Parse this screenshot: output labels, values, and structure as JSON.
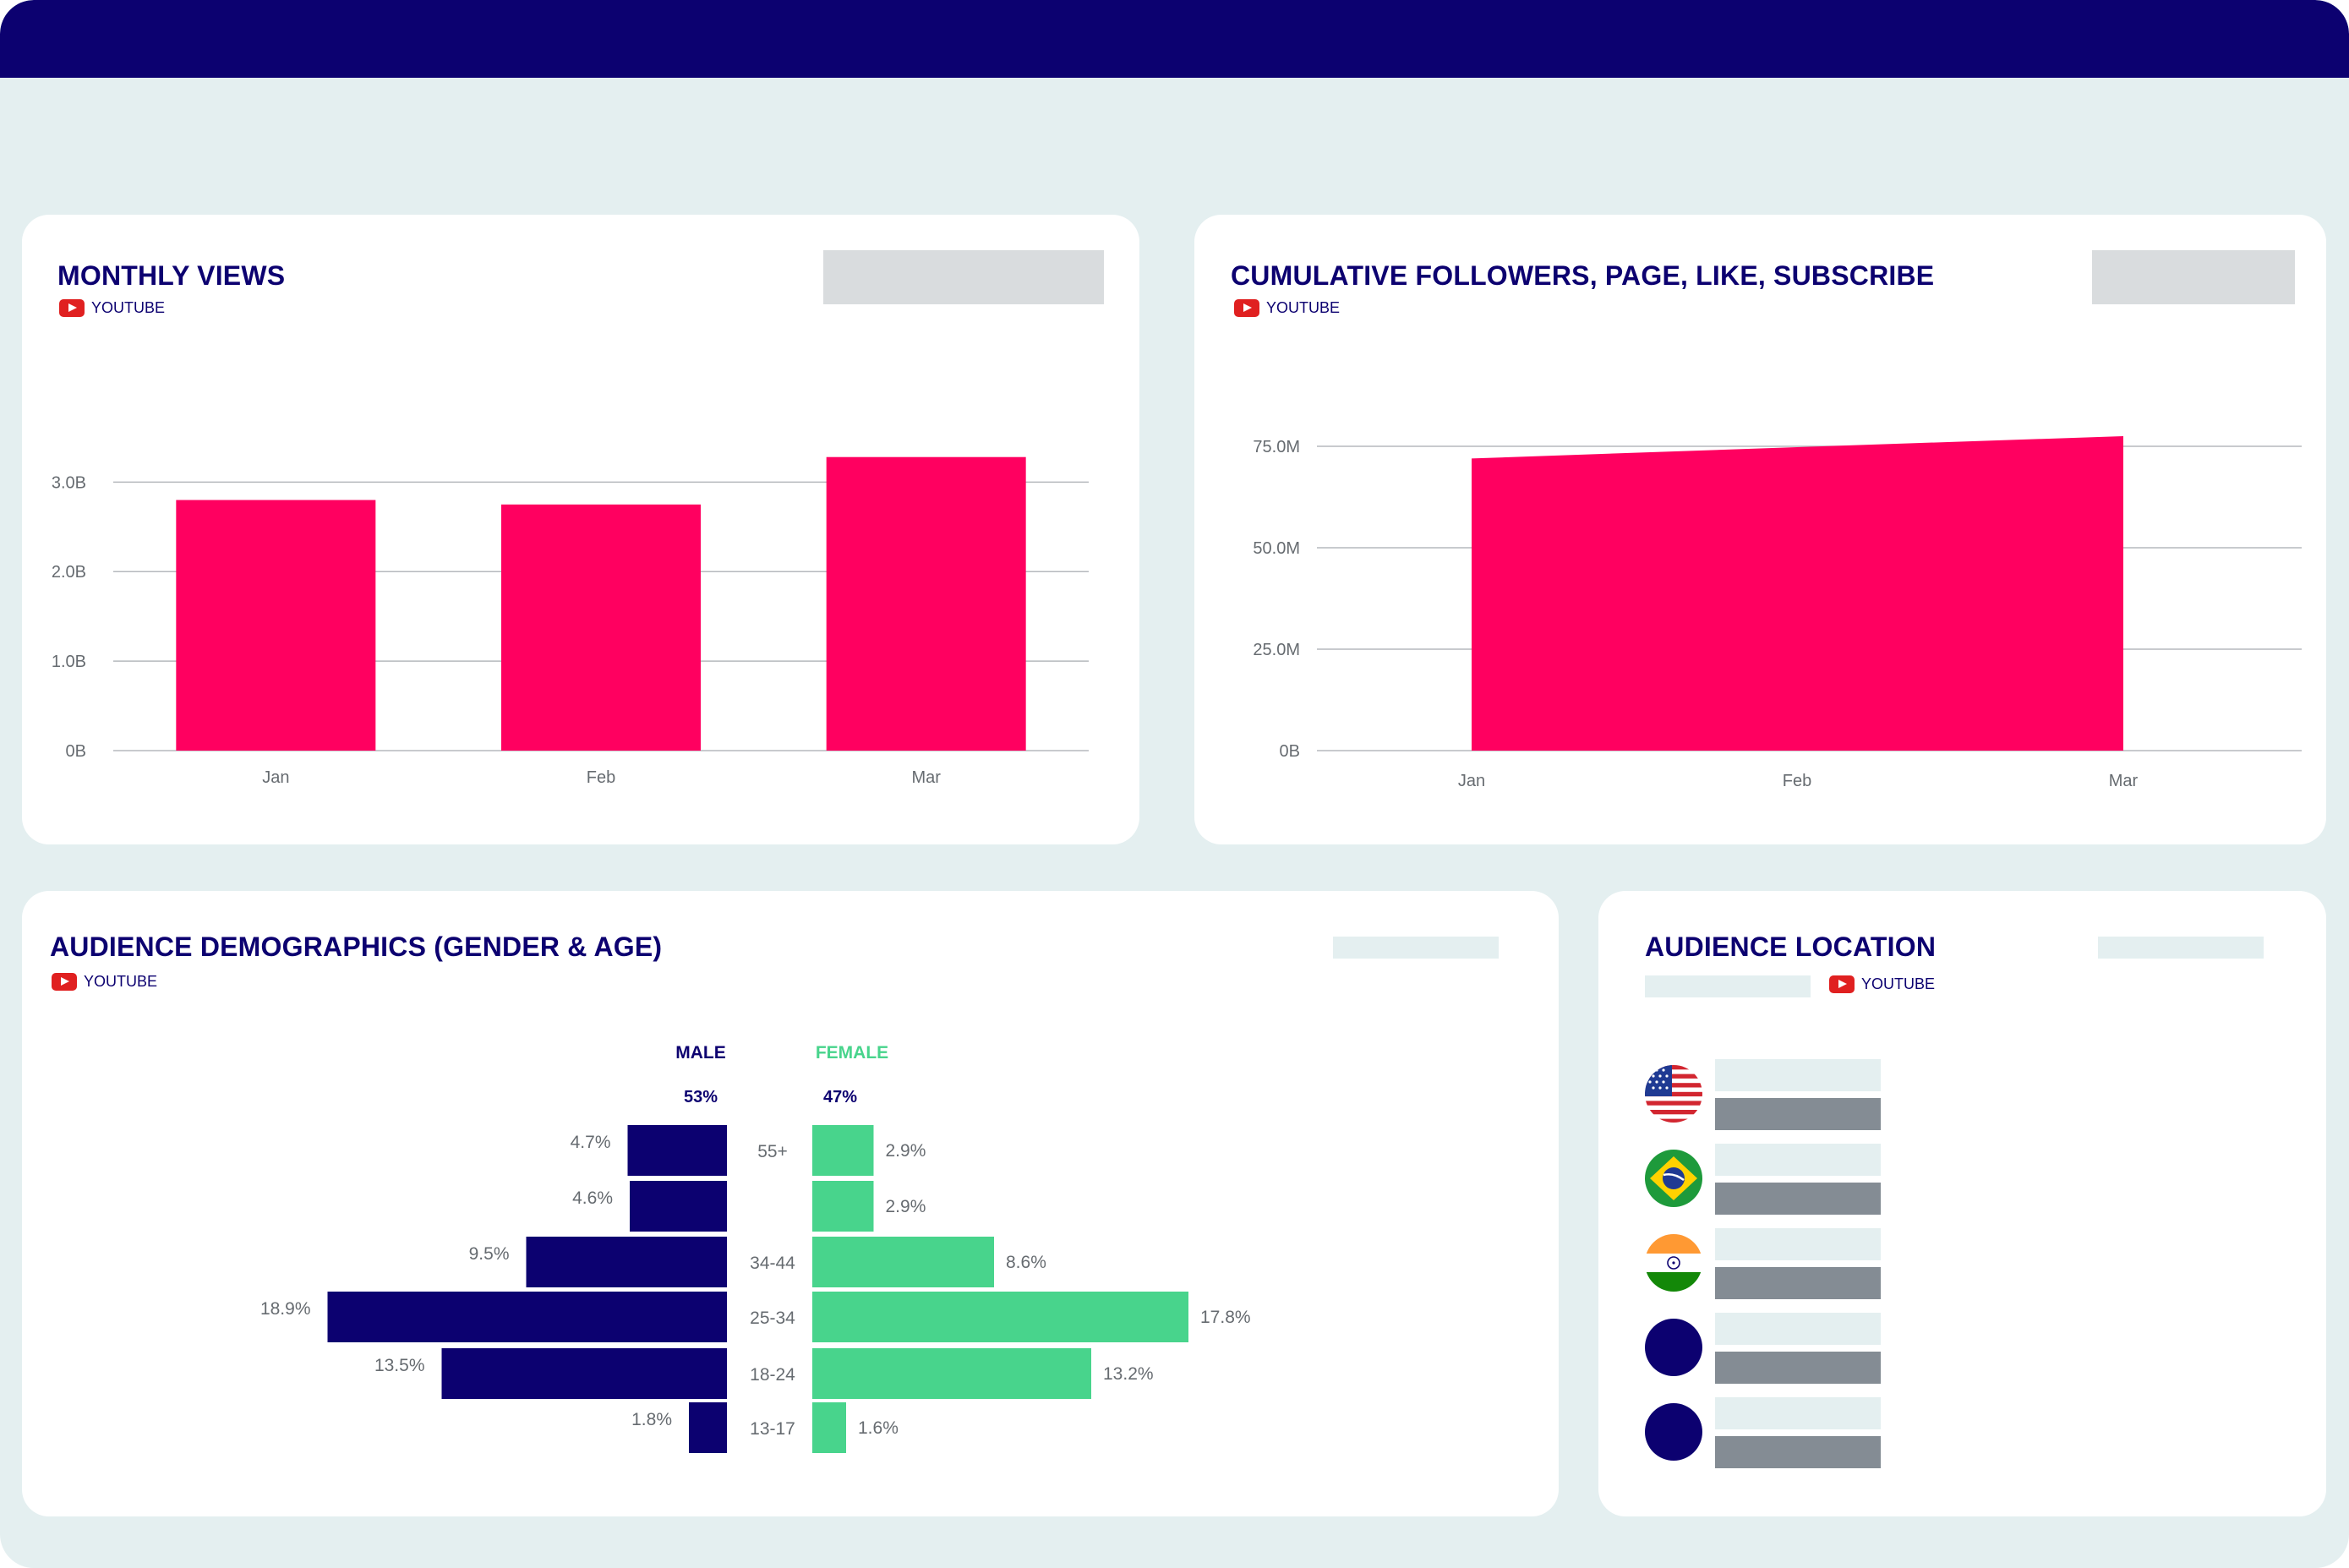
{
  "colors": {
    "navy": "#0c0170",
    "pink": "#ff0060",
    "green": "#48d48c",
    "background": "#e4eff0",
    "youtube_red": "#e02020"
  },
  "monthly_views": {
    "title": "MONTHLY VIEWS",
    "source": "YOUTUBE",
    "source_icon": "youtube-icon"
  },
  "cumulative": {
    "title": "CUMULATIVE FOLLOWERS, PAGE, LIKE, SUBSCRIBE",
    "source": "YOUTUBE",
    "source_icon": "youtube-icon"
  },
  "demographics": {
    "title": "AUDIENCE DEMOGRAPHICS (GENDER & AGE)",
    "source": "YOUTUBE",
    "source_icon": "youtube-icon"
  },
  "location": {
    "title": "AUDIENCE LOCATION",
    "source": "YOUTUBE",
    "source_icon": "youtube-icon",
    "flags": [
      "united-states-flag-icon",
      "brazil-flag-icon",
      "india-flag-icon",
      "navy-circle-icon",
      "navy-circle-icon"
    ]
  },
  "chart_data": [
    {
      "type": "bar",
      "categories": [
        "Jan",
        "Feb",
        "Mar"
      ],
      "values": [
        2.8,
        2.75,
        3.28
      ],
      "y_ticks": [
        "0B",
        "1.0B",
        "2.0B",
        "3.0B"
      ],
      "y_tick_values": [
        0,
        1,
        2,
        3
      ],
      "ylim": [
        0,
        3.4
      ],
      "grid": true,
      "color": "#ff0060"
    },
    {
      "type": "area",
      "x": [
        "Jan",
        "Feb",
        "Mar"
      ],
      "values": [
        72,
        74.8,
        77.5
      ],
      "y_ticks": [
        "0B",
        "25.0M",
        "50.0M",
        "75.0M"
      ],
      "y_tick_values": [
        0,
        25,
        50,
        75
      ],
      "ylim": [
        0,
        80
      ],
      "grid": true,
      "color": "#ff0060"
    },
    {
      "type": "bar",
      "orientation": "horizontal",
      "male_label": "MALE",
      "female_label": "FEMALE",
      "male_total": "53%",
      "female_total": "47%",
      "categories": [
        "55+",
        "",
        "34-44",
        "25-34",
        "18-24",
        "13-17"
      ],
      "series": [
        {
          "name": "MALE",
          "values": [
            4.7,
            4.6,
            9.5,
            18.9,
            13.5,
            1.8
          ],
          "labels": [
            "4.7%",
            "4.6%",
            "9.5%",
            "18.9%",
            "13.5%",
            "1.8%"
          ],
          "color": "#0c0170"
        },
        {
          "name": "FEMALE",
          "values": [
            2.9,
            2.9,
            8.6,
            17.8,
            13.2,
            1.6
          ],
          "labels": [
            "2.9%",
            "2.9%",
            "8.6%",
            "17.8%",
            "13.2%",
            "1.6%"
          ],
          "color": "#48d48c"
        }
      ]
    }
  ]
}
